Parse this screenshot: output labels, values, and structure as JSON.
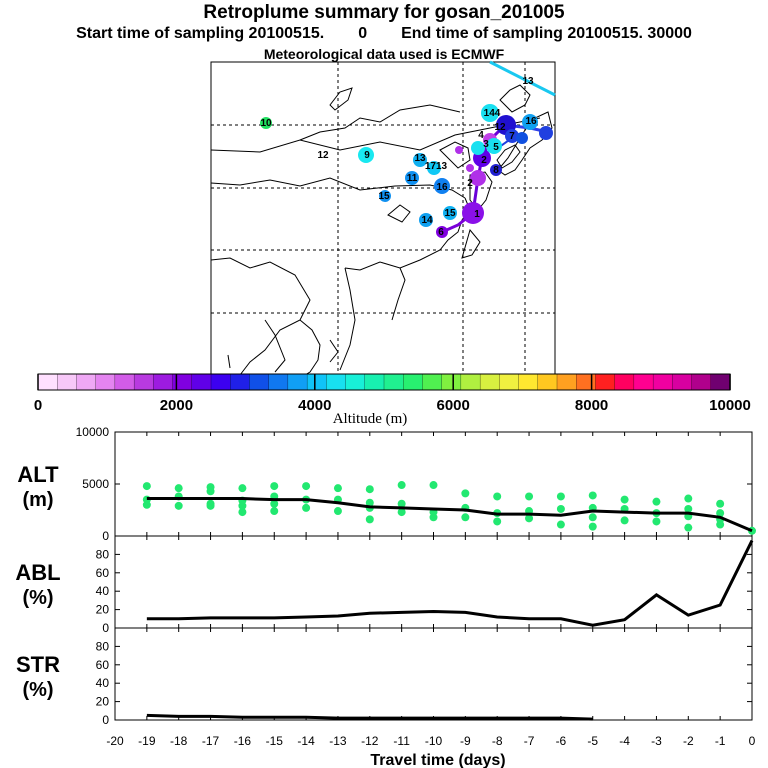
{
  "header": {
    "title": "Retroplume summary for gosan_201005",
    "start_label": "Start time of sampling",
    "start_value": "20100515.",
    "start_hour": "0",
    "end_label": "End time of sampling",
    "end_value": "20100515. 30000",
    "met_note": "Meteorological data used is ECMWF"
  },
  "map": {
    "plume_labels": [
      "13",
      "144",
      "16",
      "12",
      "10",
      "12",
      "9",
      "13",
      "1713",
      "11",
      "16",
      "15",
      "14",
      "15",
      "6",
      "5",
      "4",
      "3",
      "2",
      "1",
      "7",
      "8",
      "2"
    ],
    "colors": {
      "land": "#ffffff",
      "coast": "#000000",
      "track": "#6a00d8",
      "cyan": "#19e0f0",
      "blue": "#1f3fd0"
    }
  },
  "colorbar": {
    "label": "Altitude (m)",
    "ticks": [
      "0",
      "2000",
      "4000",
      "6000",
      "8000",
      "10000"
    ],
    "colors": [
      "#ffe0ff",
      "#f7c8f8",
      "#efa8f5",
      "#e484f0",
      "#d25ce8",
      "#b83ae0",
      "#9d1be0",
      "#8000e0",
      "#6000e8",
      "#3c00f0",
      "#2020e8",
      "#1050e8",
      "#1078f0",
      "#109ff5",
      "#10c4f8",
      "#18e0f0",
      "#18f0d8",
      "#18f0b0",
      "#20f090",
      "#28f070",
      "#50f050",
      "#80f040",
      "#b0f040",
      "#d8f040",
      "#f0f040",
      "#ffe830",
      "#ffc820",
      "#ffa020",
      "#ff7020",
      "#ff2020",
      "#ff0060",
      "#ff0090",
      "#f000a0",
      "#d800a0",
      "#b0008c",
      "#700070"
    ]
  },
  "chart_data": [
    {
      "type": "scatter",
      "panel": "ALT",
      "ylabel_line1": "ALT",
      "ylabel_line2": "(m)",
      "ylim": [
        0,
        10000
      ],
      "yticks": [
        "10000",
        "5000",
        "0"
      ],
      "x": [
        -19,
        -18,
        -17,
        -16,
        -15,
        -14,
        -13,
        -12,
        -11,
        -10,
        -9,
        -8,
        -7,
        -6,
        -5,
        -4,
        -3,
        -2,
        -1,
        0
      ],
      "line_values": [
        3600,
        3600,
        3600,
        3600,
        3500,
        3500,
        3200,
        2800,
        2700,
        2600,
        2500,
        2100,
        2100,
        2000,
        2400,
        2300,
        2200,
        2200,
        1800,
        500
      ],
      "point_color": "#22e870",
      "points": [
        {
          "x": -19,
          "y": [
            4800,
            3500,
            3000
          ]
        },
        {
          "x": -18,
          "y": [
            4600,
            3800,
            2900
          ]
        },
        {
          "x": -17,
          "y": [
            4700,
            4300,
            3100,
            2900
          ]
        },
        {
          "x": -16,
          "y": [
            4600,
            3400,
            2900,
            2300
          ]
        },
        {
          "x": -15,
          "y": [
            4800,
            3800,
            3100,
            2400
          ]
        },
        {
          "x": -14,
          "y": [
            4800,
            3500,
            2700
          ]
        },
        {
          "x": -13,
          "y": [
            4600,
            3500,
            2400
          ]
        },
        {
          "x": -12,
          "y": [
            4500,
            3200,
            2700,
            1600
          ]
        },
        {
          "x": -11,
          "y": [
            4900,
            3100,
            2300
          ]
        },
        {
          "x": -10,
          "y": [
            4900,
            2300,
            1800
          ]
        },
        {
          "x": -9,
          "y": [
            4100,
            2700,
            1800
          ]
        },
        {
          "x": -8,
          "y": [
            3800,
            2200,
            1400
          ]
        },
        {
          "x": -7,
          "y": [
            3800,
            2400,
            1700
          ]
        },
        {
          "x": -6,
          "y": [
            3800,
            2600,
            1100
          ]
        },
        {
          "x": -5,
          "y": [
            3900,
            2700,
            1800,
            900
          ]
        },
        {
          "x": -4,
          "y": [
            3500,
            2600,
            1500
          ]
        },
        {
          "x": -3,
          "y": [
            3300,
            2200,
            1400
          ]
        },
        {
          "x": -2,
          "y": [
            3600,
            2600,
            1900,
            800
          ]
        },
        {
          "x": -1,
          "y": [
            3100,
            2200,
            1600,
            1100
          ]
        },
        {
          "x": 0,
          "y": [
            500
          ]
        }
      ]
    },
    {
      "type": "line",
      "panel": "ABL",
      "ylabel_line1": "ABL",
      "ylabel_line2": "(%)",
      "ylim": [
        0,
        100
      ],
      "yticks": [
        "80",
        "60",
        "40",
        "20",
        "0"
      ],
      "x": [
        -19,
        -18,
        -17,
        -16,
        -15,
        -14,
        -13,
        -12,
        -11,
        -10,
        -9,
        -8,
        -7,
        -6,
        -5,
        -4,
        -3,
        -2,
        -1,
        0
      ],
      "values": [
        10,
        10,
        11,
        11,
        11,
        12,
        13,
        16,
        17,
        18,
        17,
        12,
        10,
        10,
        3,
        9,
        36,
        14,
        25,
        95
      ]
    },
    {
      "type": "line",
      "panel": "STR",
      "ylabel_line1": "STR",
      "ylabel_line2": "(%)",
      "ylim": [
        0,
        100
      ],
      "yticks": [
        "80",
        "60",
        "40",
        "20",
        "0"
      ],
      "x": [
        -19,
        -18,
        -17,
        -16,
        -15,
        -14,
        -13,
        -12,
        -11,
        -10,
        -9,
        -8,
        -7,
        -6,
        -5
      ],
      "values": [
        5,
        4,
        4,
        3,
        3,
        3,
        2,
        2,
        2,
        2,
        2,
        2,
        2,
        2,
        1
      ]
    }
  ],
  "xaxis": {
    "label": "Travel time (days)",
    "min": -20,
    "max": 0,
    "ticks": [
      "-20",
      "-19",
      "-18",
      "-17",
      "-16",
      "-15",
      "-14",
      "-13",
      "-12",
      "-11",
      "-10",
      "-9",
      "-8",
      "-7",
      "-6",
      "-5",
      "-4",
      "-3",
      "-2",
      "-1",
      "0"
    ]
  }
}
